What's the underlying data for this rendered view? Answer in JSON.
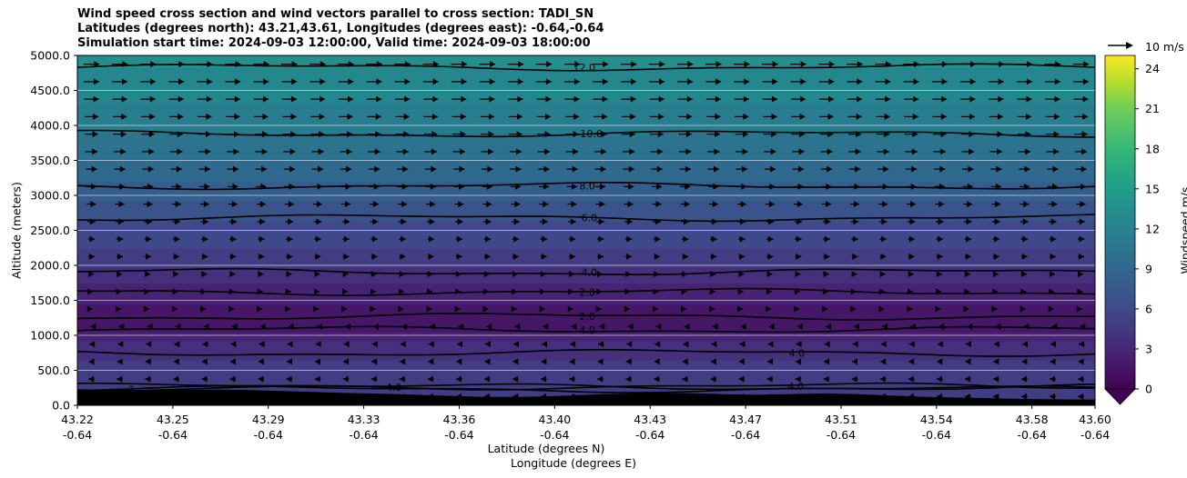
{
  "chart_data": {
    "type": "heatmap",
    "title_lines": [
      "Wind speed cross section and wind vectors parallel to cross section: TADI_SN",
      "Latitudes (degrees north): 43.21,43.61, Longitudes (degrees east): -0.64,-0.64",
      "Simulation start time: 2024-09-03 12:00:00, Valid time: 2024-09-03 18:00:00"
    ],
    "xlabel": "Latitude (degrees N)",
    "xlabel2": "Longitude (degrees E)",
    "ylabel": "Altitude (meters)",
    "ylim": [
      0,
      5000
    ],
    "xlim": [
      43.22,
      43.6
    ],
    "x_ticks": [
      {
        "lat": "43.22",
        "lon": "-0.64"
      },
      {
        "lat": "43.25",
        "lon": "-0.64"
      },
      {
        "lat": "43.29",
        "lon": "-0.64"
      },
      {
        "lat": "43.33",
        "lon": "-0.64"
      },
      {
        "lat": "43.36",
        "lon": "-0.64"
      },
      {
        "lat": "43.40",
        "lon": "-0.64"
      },
      {
        "lat": "43.43",
        "lon": "-0.64"
      },
      {
        "lat": "43.47",
        "lon": "-0.64"
      },
      {
        "lat": "43.51",
        "lon": "-0.64"
      },
      {
        "lat": "43.54",
        "lon": "-0.64"
      },
      {
        "lat": "43.58",
        "lon": "-0.64"
      },
      {
        "lat": "43.60",
        "lon": "-0.64"
      }
    ],
    "y_ticks": [
      "0.0",
      "500.0",
      "1000.0",
      "1500.0",
      "2000.0",
      "2500.0",
      "3000.0",
      "3500.0",
      "4000.0",
      "4500.0",
      "5000.0"
    ],
    "y_tick_values": [
      0,
      500,
      1000,
      1500,
      2000,
      2500,
      3000,
      3500,
      4000,
      4500,
      5000
    ],
    "colorbar": {
      "label": "Windspeed m/s",
      "ticks": [
        "0",
        "3",
        "6",
        "9",
        "12",
        "15",
        "18",
        "21",
        "24"
      ],
      "tick_values": [
        0,
        3,
        6,
        9,
        12,
        15,
        18,
        21,
        24
      ],
      "max": 25,
      "extend": "min",
      "colormap": "viridis"
    },
    "reference_vector": {
      "label": "10 m/s",
      "speed": 10
    },
    "grid": "horizontal",
    "contour_labels": [
      {
        "text": "12.0",
        "x": 0.498,
        "alt": 4830
      },
      {
        "text": "10.0",
        "x": 0.505,
        "alt": 3880
      },
      {
        "text": "8.0",
        "x": 0.501,
        "alt": 3135
      },
      {
        "text": "6.0",
        "x": 0.503,
        "alt": 2680
      },
      {
        "text": "4.0",
        "x": 0.503,
        "alt": 1905
      },
      {
        "text": "2.0",
        "x": 0.501,
        "alt": 1620
      },
      {
        "text": "2.0",
        "x": 0.501,
        "alt": 1270
      },
      {
        "text": "4.0",
        "x": 0.501,
        "alt": 1080
      },
      {
        "text": "4.0",
        "x": 0.706,
        "alt": 270
      },
      {
        "text": "4.0",
        "x": 0.707,
        "alt": 750
      },
      {
        "text": "4.0",
        "x": 0.311,
        "alt": 260
      },
      {
        "text": "2",
        "x": 0.053,
        "alt": 230
      }
    ],
    "speed_profile": [
      {
        "alt": 0,
        "speed": 4.5
      },
      {
        "alt": 300,
        "speed": 4.8
      },
      {
        "alt": 600,
        "speed": 4.2
      },
      {
        "alt": 900,
        "speed": 3.2
      },
      {
        "alt": 1100,
        "speed": 1.6
      },
      {
        "alt": 1300,
        "speed": 1.5
      },
      {
        "alt": 1500,
        "speed": 2.2
      },
      {
        "alt": 1800,
        "speed": 3.2
      },
      {
        "alt": 2100,
        "speed": 4.6
      },
      {
        "alt": 2500,
        "speed": 5.6
      },
      {
        "alt": 2800,
        "speed": 6.6
      },
      {
        "alt": 3200,
        "speed": 8.0
      },
      {
        "alt": 3600,
        "speed": 9.2
      },
      {
        "alt": 3900,
        "speed": 10.0
      },
      {
        "alt": 4400,
        "speed": 11.2
      },
      {
        "alt": 5000,
        "speed": 12.3
      }
    ]
  }
}
